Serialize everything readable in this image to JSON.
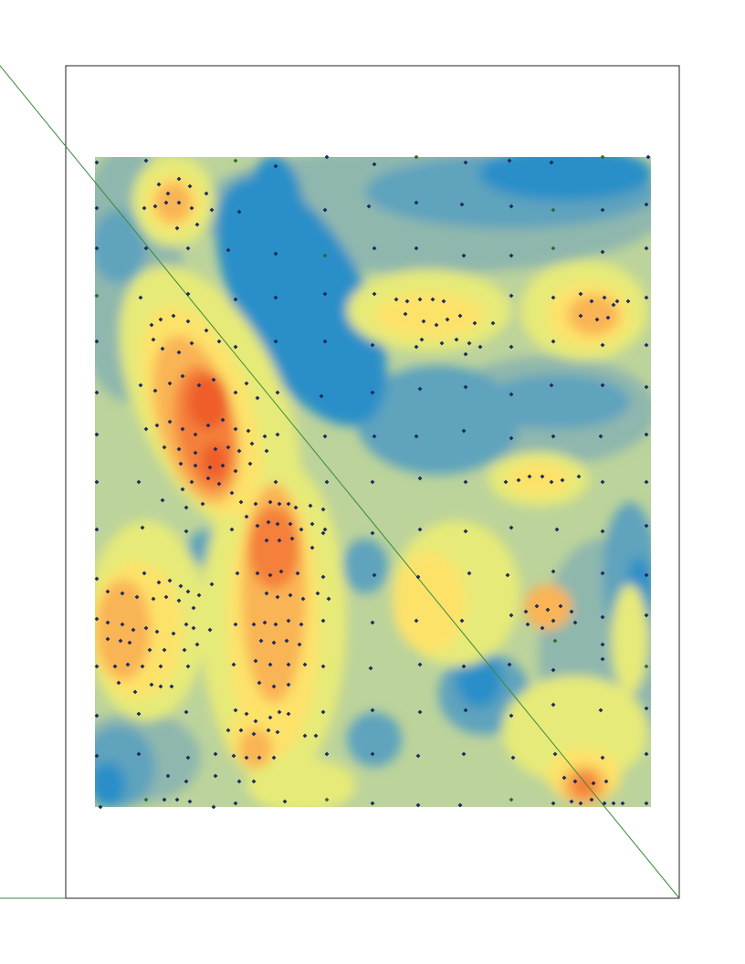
{
  "map": {
    "legend_items": [],
    "colors": {
      "low": "#2b8fc8",
      "low_mid": "#5fa3bd",
      "mid_low": "#8fb7ad",
      "mid": "#bcd39b",
      "mid_high": "#e6ea78",
      "high": "#fde26a",
      "higher": "#f9b455",
      "highest": "#f4803a",
      "peak": "#ee5d2a",
      "sample_point": "#1b2a5e",
      "sample_point_alt": "#2e6b2e",
      "diagonal_line": "#3a8a3a",
      "frame": "#222222"
    },
    "layers": {
      "surface": "interpolated-surface",
      "points": "sample-points",
      "line": "transect-line"
    }
  }
}
